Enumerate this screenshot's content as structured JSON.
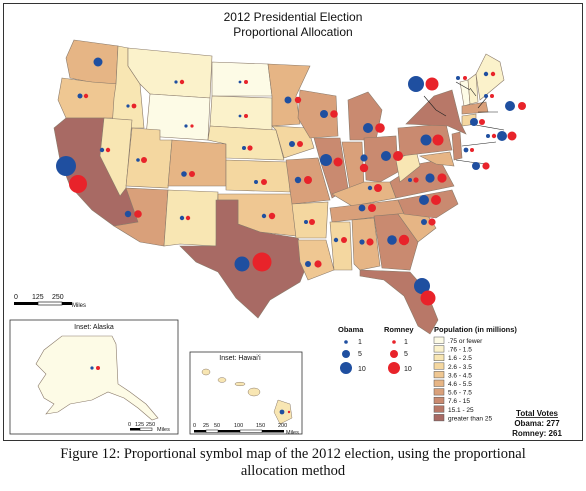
{
  "title_line1": "2012 Presidential Election",
  "title_line2": "Proportional Allocation",
  "scale_main": {
    "ticks": [
      "0",
      "125",
      "250"
    ],
    "unit": "Miles"
  },
  "inset_alaska": {
    "title": "Inset: Alaska",
    "ticks": [
      "0",
      "125",
      "250"
    ],
    "unit": "Miles"
  },
  "inset_hawaii": {
    "title": "Inset: Hawai'i",
    "ticks": [
      "0",
      "25",
      "50",
      "100",
      "150",
      "200"
    ],
    "unit": "Miles"
  },
  "legend_obama": {
    "title": "Obama",
    "items": [
      "1",
      "5",
      "10"
    ],
    "color": "#1f4fa0"
  },
  "legend_romney": {
    "title": "Romney",
    "items": [
      "1",
      "5",
      "10"
    ],
    "color": "#e8232a"
  },
  "legend_population": {
    "title": "Population (in millions)",
    "classes": [
      {
        "label": ".75 or fewer",
        "color": "#fdfbe6"
      },
      {
        "label": ".76 - 1.5",
        "color": "#fbf2cb"
      },
      {
        "label": "1.6 - 2.5",
        "color": "#f8e6b3"
      },
      {
        "label": "2.6 - 3.5",
        "color": "#f4d7a0"
      },
      {
        "label": "3.6 - 4.5",
        "color": "#efc792"
      },
      {
        "label": "4.6 - 5.5",
        "color": "#e6b585"
      },
      {
        "label": "5.6 - 7.5",
        "color": "#d9a07a"
      },
      {
        "label": "7.6 - 15",
        "color": "#c98a70"
      },
      {
        "label": "15.1 - 25",
        "color": "#b87868"
      },
      {
        "label": "greater than 25",
        "color": "#a86a64"
      }
    ]
  },
  "total_votes": {
    "title": "Total Votes",
    "obama": "Obama: 277",
    "romney": "Romney: 261"
  },
  "caption_line1": "Figure 12: Proportional symbol map of the 2012 election, using the proportional",
  "caption_line2": "allocation method"
}
